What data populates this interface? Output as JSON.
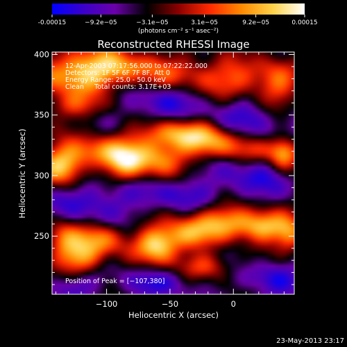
{
  "colorbar": {
    "tick_labels": [
      "-0.00015",
      "−9.2e−05",
      "−3.1e−05",
      "3.1e−05",
      "9.2e−05",
      "0.00015"
    ],
    "tick_values": [
      -0.00015,
      -9.2e-05,
      -3.1e-05,
      3.1e-05,
      9.2e-05,
      0.00015
    ],
    "units_label": "(photons cm⁻² s⁻¹ asec⁻²)",
    "range": [
      -0.00015,
      0.00015
    ],
    "colors": [
      "#0000ff",
      "#3a00c8",
      "#6a00a8",
      "#000000",
      "#8a0000",
      "#ff2a00",
      "#ff8a00",
      "#ffd24a",
      "#ffffff"
    ]
  },
  "chart_data": {
    "type": "heatmap",
    "title": "Reconstructed RHESSI Image",
    "xlabel": "Heliocentric X (arcsec)",
    "ylabel": "Heliocentric Y (arcsec)",
    "xlim": [
      -143,
      48
    ],
    "ylim": [
      202,
      402
    ],
    "xticks": [
      -100,
      -50,
      0
    ],
    "xtick_labels": [
      "−100",
      "−50",
      "0"
    ],
    "yticks": [
      250,
      300,
      350,
      400
    ],
    "ytick_labels": [
      "250",
      "300",
      "350",
      "400"
    ],
    "annotations": [
      "12-Apr-2003 07:17:56.000 to 07:22:22.000",
      "Detectors: 1F 5F 6F 7F 8F, Att 0",
      "Energy Range: 25.0 - 50.0 keV",
      "Clean     Total counts: 3.17E+03"
    ],
    "peak_label": "Position of Peak = [−107,380]",
    "peak_position": [
      -107,
      380
    ],
    "bright_features": [
      {
        "x": -125,
        "y": 385,
        "amp": 0.85,
        "sx": 25,
        "sy": 14
      },
      {
        "x": -90,
        "y": 390,
        "amp": 0.55,
        "sx": 20,
        "sy": 10
      },
      {
        "x": -40,
        "y": 385,
        "amp": 0.45,
        "sx": 25,
        "sy": 12
      },
      {
        "x": 5,
        "y": 380,
        "amp": 0.5,
        "sx": 18,
        "sy": 12
      },
      {
        "x": 35,
        "y": 372,
        "amp": 0.55,
        "sx": 12,
        "sy": 18
      },
      {
        "x": -125,
        "y": 357,
        "amp": 0.4,
        "sx": 20,
        "sy": 8
      },
      {
        "x": -135,
        "y": 308,
        "amp": 0.95,
        "sx": 12,
        "sy": 12
      },
      {
        "x": -110,
        "y": 320,
        "amp": 0.6,
        "sx": 15,
        "sy": 10
      },
      {
        "x": -85,
        "y": 312,
        "amp": 0.85,
        "sx": 12,
        "sy": 12
      },
      {
        "x": -60,
        "y": 315,
        "amp": 0.7,
        "sx": 15,
        "sy": 12
      },
      {
        "x": -48,
        "y": 335,
        "amp": 0.6,
        "sx": 20,
        "sy": 8
      },
      {
        "x": -20,
        "y": 328,
        "amp": 0.7,
        "sx": 18,
        "sy": 10
      },
      {
        "x": 15,
        "y": 322,
        "amp": 0.35,
        "sx": 20,
        "sy": 8
      },
      {
        "x": 40,
        "y": 318,
        "amp": 0.8,
        "sx": 8,
        "sy": 10
      },
      {
        "x": -135,
        "y": 248,
        "amp": 0.55,
        "sx": 10,
        "sy": 12
      },
      {
        "x": -105,
        "y": 248,
        "amp": 0.7,
        "sx": 14,
        "sy": 10
      },
      {
        "x": -120,
        "y": 232,
        "amp": 0.75,
        "sx": 12,
        "sy": 10
      },
      {
        "x": -60,
        "y": 242,
        "amp": 1.0,
        "sx": 12,
        "sy": 11
      },
      {
        "x": -35,
        "y": 252,
        "amp": 0.7,
        "sx": 14,
        "sy": 10
      },
      {
        "x": -5,
        "y": 262,
        "amp": 0.75,
        "sx": 18,
        "sy": 10
      },
      {
        "x": 25,
        "y": 258,
        "amp": 0.8,
        "sx": 14,
        "sy": 9
      },
      {
        "x": 45,
        "y": 250,
        "amp": 0.6,
        "sx": 8,
        "sy": 10
      },
      {
        "x": -20,
        "y": 225,
        "amp": 0.5,
        "sx": 15,
        "sy": 8
      }
    ],
    "dark_features": [
      {
        "x": -60,
        "y": 360,
        "amp": 0.8,
        "sx": 22,
        "sy": 10
      },
      {
        "x": 20,
        "y": 348,
        "amp": 0.85,
        "sx": 25,
        "sy": 12
      },
      {
        "x": -115,
        "y": 278,
        "amp": 0.8,
        "sx": 22,
        "sy": 14
      },
      {
        "x": -50,
        "y": 285,
        "amp": 0.7,
        "sx": 25,
        "sy": 10
      },
      {
        "x": 15,
        "y": 298,
        "amp": 0.75,
        "sx": 20,
        "sy": 12
      },
      {
        "x": -125,
        "y": 210,
        "amp": 0.6,
        "sx": 15,
        "sy": 8
      },
      {
        "x": -60,
        "y": 212,
        "amp": 0.7,
        "sx": 20,
        "sy": 8
      },
      {
        "x": 30,
        "y": 215,
        "amp": 0.7,
        "sx": 18,
        "sy": 10
      }
    ]
  },
  "footer": {
    "timestamp": "23-May-2013 23:17"
  }
}
